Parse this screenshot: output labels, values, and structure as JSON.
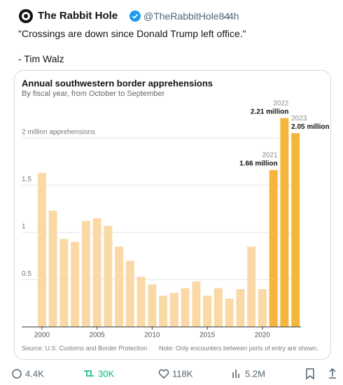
{
  "tweet": {
    "name": "The Rabbit Hole",
    "handle": "@TheRabbitHole84",
    "time": "4h",
    "text": "\"Crossings are down since Donald Trump left office.\"",
    "attribution": "- Tim Walz",
    "replies": "4.4K",
    "reposts": "30K",
    "likes": "118K",
    "views": "5.2M"
  },
  "chart_data": {
    "type": "bar",
    "title": "Annual southwestern border apprehensions",
    "subtitle": "By fiscal year, from October to September",
    "x": [
      2000,
      2001,
      2002,
      2003,
      2004,
      2005,
      2006,
      2007,
      2008,
      2009,
      2010,
      2011,
      2012,
      2013,
      2014,
      2015,
      2016,
      2017,
      2018,
      2019,
      2020,
      2021,
      2022,
      2023
    ],
    "values": [
      1.63,
      1.23,
      0.93,
      0.9,
      1.12,
      1.15,
      1.07,
      0.85,
      0.7,
      0.53,
      0.45,
      0.33,
      0.36,
      0.41,
      0.48,
      0.33,
      0.41,
      0.3,
      0.4,
      0.85,
      0.4,
      1.66,
      2.21,
      2.05
    ],
    "value_labels": [
      null,
      null,
      null,
      null,
      null,
      null,
      null,
      null,
      null,
      null,
      null,
      null,
      null,
      null,
      null,
      null,
      null,
      null,
      null,
      null,
      null,
      "1.66 million",
      "2.21 million",
      "2.05 million"
    ],
    "colors": [
      "#fad9a6",
      "#fad9a6",
      "#fad9a6",
      "#fad9a6",
      "#fad9a6",
      "#fad9a6",
      "#fad9a6",
      "#fad9a6",
      "#fad9a6",
      "#fad9a6",
      "#fad9a6",
      "#fad9a6",
      "#fad9a6",
      "#fad9a6",
      "#fad9a6",
      "#fad9a6",
      "#fad9a6",
      "#fad9a6",
      "#fad9a6",
      "#fad9a6",
      "#fad9a6",
      "#f6b63c",
      "#f6b63c",
      "#f6b63c"
    ],
    "xlim": [
      1999.5,
      2023.5
    ],
    "xticks": [
      2000,
      2005,
      2010,
      2015,
      2020
    ],
    "ylim": [
      0,
      2.3
    ],
    "yticks": [
      0.5,
      1,
      1.5,
      {
        "value": 2,
        "label": "2 million apprehensions"
      }
    ],
    "grid": true,
    "source": "Source: U.S. Customs and Border Protection",
    "note": "Note: Only encounters between ports of entry are shown."
  }
}
